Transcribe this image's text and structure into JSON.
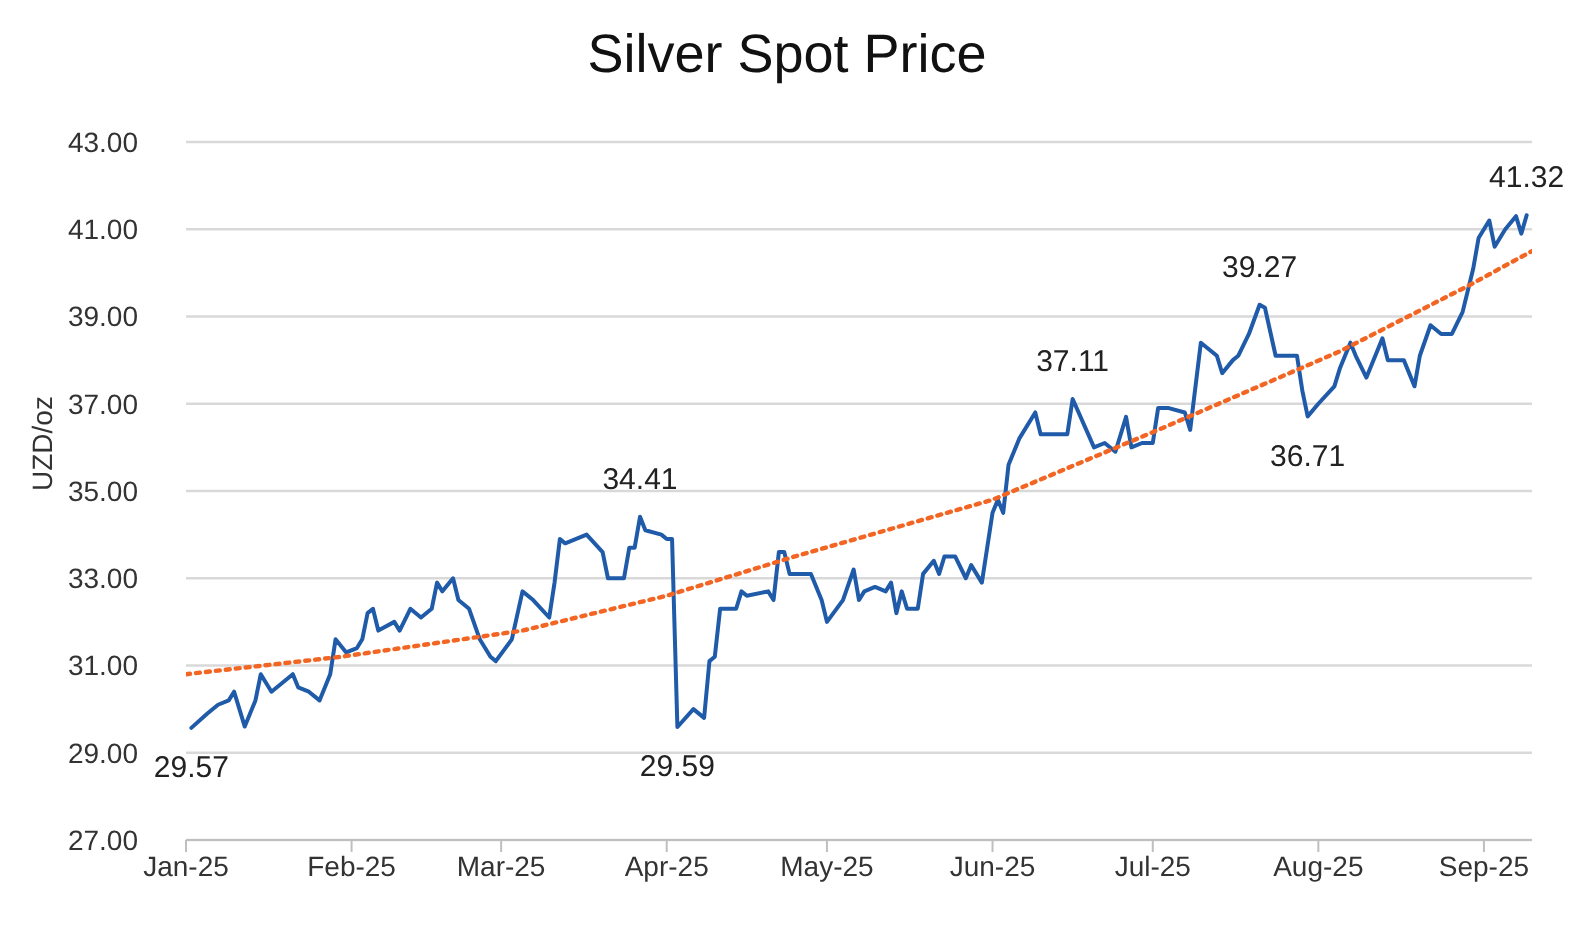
{
  "chart_data": {
    "type": "line",
    "title": "Silver Spot Price",
    "ylabel": "UZD/oz",
    "xlim": [
      "2025-01-01",
      "2025-09-10"
    ],
    "xticks": [
      {
        "value": "2025-01-01",
        "label": "Jan-25"
      },
      {
        "value": "2025-02-01",
        "label": "Feb-25"
      },
      {
        "value": "2025-03-01",
        "label": "Mar-25"
      },
      {
        "value": "2025-04-01",
        "label": "Apr-25"
      },
      {
        "value": "2025-05-01",
        "label": "May-25"
      },
      {
        "value": "2025-06-01",
        "label": "Jun-25"
      },
      {
        "value": "2025-07-01",
        "label": "Jul-25"
      },
      {
        "value": "2025-08-01",
        "label": "Aug-25"
      },
      {
        "value": "2025-09-01",
        "label": "Sep-25"
      }
    ],
    "ylim": [
      27,
      43
    ],
    "yticks": [
      {
        "value": 27,
        "label": "27.00"
      },
      {
        "value": 29,
        "label": "29.00"
      },
      {
        "value": 31,
        "label": "31.00"
      },
      {
        "value": 33,
        "label": "33.00"
      },
      {
        "value": 35,
        "label": "35.00"
      },
      {
        "value": 37,
        "label": "37.00"
      },
      {
        "value": 39,
        "label": "39.00"
      },
      {
        "value": 41,
        "label": "41.00"
      },
      {
        "value": 43,
        "label": "43.00"
      }
    ],
    "grid": "y",
    "marker": "none",
    "series": [
      {
        "color": "#1f5ba8",
        "line_style": "solid",
        "x": [
          "2025-01-02",
          "2025-01-05",
          "2025-01-07",
          "2025-01-09",
          "2025-01-10",
          "2025-01-12",
          "2025-01-14",
          "2025-01-15",
          "2025-01-17",
          "2025-01-19",
          "2025-01-21",
          "2025-01-22",
          "2025-01-24",
          "2025-01-26",
          "2025-01-28",
          "2025-01-29",
          "2025-01-31",
          "2025-02-02",
          "2025-02-03",
          "2025-02-04",
          "2025-02-05",
          "2025-02-06",
          "2025-02-09",
          "2025-02-10",
          "2025-02-12",
          "2025-02-14",
          "2025-02-16",
          "2025-02-17",
          "2025-02-18",
          "2025-02-20",
          "2025-02-21",
          "2025-02-23",
          "2025-02-25",
          "2025-02-27",
          "2025-02-28",
          "2025-03-03",
          "2025-03-05",
          "2025-03-07",
          "2025-03-10",
          "2025-03-11",
          "2025-03-12",
          "2025-03-13",
          "2025-03-17",
          "2025-03-20",
          "2025-03-21",
          "2025-03-24",
          "2025-03-25",
          "2025-03-26",
          "2025-03-27",
          "2025-03-28",
          "2025-03-31",
          "2025-04-01",
          "2025-04-02",
          "2025-04-03",
          "2025-04-06",
          "2025-04-08",
          "2025-04-09",
          "2025-04-10",
          "2025-04-11",
          "2025-04-14",
          "2025-04-15",
          "2025-04-16",
          "2025-04-20",
          "2025-04-21",
          "2025-04-22",
          "2025-04-23",
          "2025-04-24",
          "2025-04-28",
          "2025-04-30",
          "2025-05-01",
          "2025-05-04",
          "2025-05-06",
          "2025-05-07",
          "2025-05-08",
          "2025-05-10",
          "2025-05-12",
          "2025-05-13",
          "2025-05-14",
          "2025-05-15",
          "2025-05-16",
          "2025-05-18",
          "2025-05-19",
          "2025-05-21",
          "2025-05-22",
          "2025-05-23",
          "2025-05-25",
          "2025-05-27",
          "2025-05-28",
          "2025-05-30",
          "2025-06-01",
          "2025-06-02",
          "2025-06-03",
          "2025-06-04",
          "2025-06-06",
          "2025-06-09",
          "2025-06-10",
          "2025-06-12",
          "2025-06-15",
          "2025-06-16",
          "2025-06-20",
          "2025-06-22",
          "2025-06-24",
          "2025-06-26",
          "2025-06-27",
          "2025-06-29",
          "2025-07-01",
          "2025-07-02",
          "2025-07-04",
          "2025-07-07",
          "2025-07-08",
          "2025-07-10",
          "2025-07-13",
          "2025-07-14",
          "2025-07-16",
          "2025-07-17",
          "2025-07-19",
          "2025-07-21",
          "2025-07-22",
          "2025-07-24",
          "2025-07-28",
          "2025-07-29",
          "2025-07-30",
          "2025-08-01",
          "2025-08-04",
          "2025-08-05",
          "2025-08-07",
          "2025-08-08",
          "2025-08-10",
          "2025-08-13",
          "2025-08-14",
          "2025-08-17",
          "2025-08-19",
          "2025-08-20",
          "2025-08-22",
          "2025-08-24",
          "2025-08-26",
          "2025-08-28",
          "2025-08-30",
          "2025-08-31",
          "2025-09-02",
          "2025-09-03",
          "2025-09-05",
          "2025-09-07",
          "2025-09-08",
          "2025-09-09"
        ],
        "values": [
          29.57,
          29.9,
          30.1,
          30.2,
          30.4,
          29.6,
          30.2,
          30.8,
          30.4,
          30.6,
          30.8,
          30.5,
          30.4,
          30.2,
          30.8,
          31.6,
          31.3,
          31.4,
          31.6,
          32.2,
          32.3,
          31.8,
          32.0,
          31.8,
          32.3,
          32.1,
          32.3,
          32.9,
          32.7,
          33.0,
          32.5,
          32.3,
          31.6,
          31.2,
          31.1,
          31.6,
          32.7,
          32.5,
          32.1,
          32.9,
          33.9,
          33.8,
          34.0,
          33.6,
          33.0,
          33.0,
          33.7,
          33.7,
          34.41,
          34.1,
          34.0,
          33.9,
          33.9,
          29.59,
          30.0,
          29.8,
          31.1,
          31.2,
          32.3,
          32.3,
          32.7,
          32.6,
          32.7,
          32.5,
          33.6,
          33.6,
          33.1,
          33.1,
          32.5,
          32.0,
          32.5,
          33.2,
          32.5,
          32.7,
          32.8,
          32.7,
          32.9,
          32.2,
          32.7,
          32.3,
          32.3,
          33.1,
          33.4,
          33.1,
          33.5,
          33.5,
          33.0,
          33.3,
          32.9,
          34.5,
          34.8,
          34.5,
          35.6,
          36.2,
          36.8,
          36.3,
          36.3,
          36.3,
          37.11,
          36.0,
          36.1,
          35.9,
          36.7,
          36.0,
          36.1,
          36.1,
          36.9,
          36.9,
          36.8,
          36.4,
          38.4,
          38.1,
          37.7,
          38.0,
          38.1,
          38.6,
          39.27,
          39.2,
          38.1,
          38.1,
          37.3,
          36.71,
          37.0,
          37.4,
          37.8,
          38.4,
          38.1,
          37.6,
          38.5,
          38.0,
          38.0,
          37.4,
          38.1,
          38.8,
          38.6,
          38.6,
          39.1,
          40.1,
          40.8,
          41.2,
          40.6,
          41.0,
          41.3,
          40.9,
          41.32
        ]
      },
      {
        "color": "#f26522",
        "line_style": "dotted",
        "x": [
          "2025-01-01",
          "2025-01-30",
          "2025-03-05",
          "2025-04-01",
          "2025-04-25",
          "2025-06-01",
          "2025-07-02",
          "2025-08-05",
          "2025-08-29",
          "2025-09-10"
        ],
        "values": [
          30.8,
          31.2,
          31.8,
          32.6,
          33.5,
          34.8,
          36.4,
          38.2,
          39.7,
          40.5
        ]
      }
    ],
    "annotations": [
      {
        "text": "29.57",
        "x": "2025-01-02",
        "y": 29.57
      },
      {
        "text": "34.41",
        "x": "2025-03-27",
        "y": 34.41
      },
      {
        "text": "29.59",
        "x": "2025-04-03",
        "y": 29.59
      },
      {
        "text": "37.11",
        "x": "2025-06-16",
        "y": 37.11
      },
      {
        "text": "39.27",
        "x": "2025-07-21",
        "y": 39.27
      },
      {
        "text": "36.71",
        "x": "2025-07-30",
        "y": 36.71
      },
      {
        "text": "41.32",
        "x": "2025-09-09",
        "y": 41.32
      }
    ]
  }
}
